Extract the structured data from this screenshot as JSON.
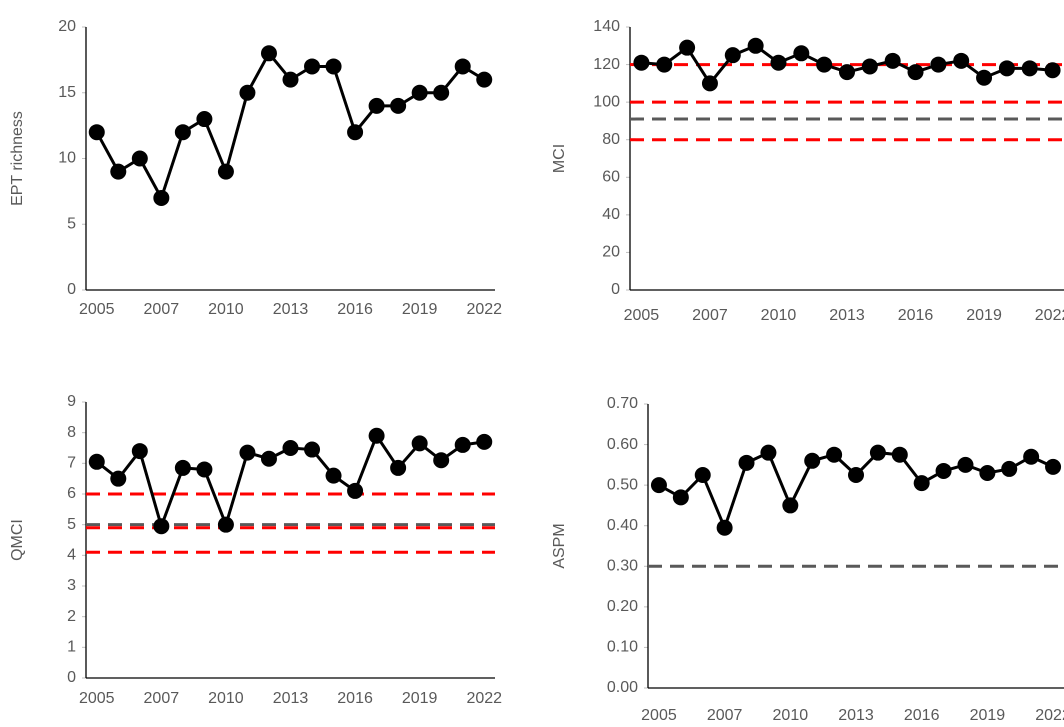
{
  "chart_data": [
    {
      "type": "line",
      "y_label": "EPT richness",
      "categories": [
        "2005",
        null,
        null,
        "2007",
        null,
        null,
        "2010",
        null,
        null,
        "2013",
        null,
        null,
        "2016",
        null,
        null,
        "2019",
        null,
        null,
        "2022"
      ],
      "series": [
        {
          "color": "#000000",
          "values": [
            12,
            9,
            10,
            7,
            12,
            13,
            9,
            15,
            18,
            16,
            17,
            17,
            12,
            14,
            14,
            15,
            15,
            17,
            16
          ]
        }
      ],
      "ylim": [
        0,
        20
      ],
      "yticks": [
        0,
        5,
        10,
        15,
        20
      ],
      "reference_lines": []
    },
    {
      "type": "line",
      "y_label": "MCI",
      "categories": [
        "2005",
        null,
        null,
        "2007",
        null,
        null,
        "2010",
        null,
        null,
        "2013",
        null,
        null,
        "2016",
        null,
        null,
        "2019",
        null,
        null,
        "2022"
      ],
      "series": [
        {
          "color": "#000000",
          "values": [
            121,
            120,
            129,
            110,
            125,
            130,
            121,
            126,
            120,
            116,
            119,
            122,
            116,
            120,
            122,
            113,
            118,
            118,
            117
          ]
        }
      ],
      "ylim": [
        0,
        140
      ],
      "yticks": [
        0,
        20,
        40,
        60,
        80,
        100,
        120,
        140
      ],
      "reference_lines": [
        {
          "value": 120,
          "color": "#ff0000"
        },
        {
          "value": 100,
          "color": "#ff0000"
        },
        {
          "value": 91,
          "color": "#595959"
        },
        {
          "value": 80,
          "color": "#ff0000"
        }
      ]
    },
    {
      "type": "line",
      "y_label": "QMCI",
      "categories": [
        "2005",
        null,
        null,
        "2007",
        null,
        null,
        "2010",
        null,
        null,
        "2013",
        null,
        null,
        "2016",
        null,
        null,
        "2019",
        null,
        null,
        "2022"
      ],
      "series": [
        {
          "color": "#000000",
          "values": [
            7.05,
            6.5,
            7.4,
            4.95,
            6.85,
            6.8,
            5.0,
            7.35,
            7.15,
            7.5,
            7.45,
            6.6,
            6.1,
            7.9,
            6.85,
            7.65,
            7.1,
            7.6,
            7.7
          ]
        }
      ],
      "ylim": [
        0,
        9
      ],
      "yticks": [
        0,
        1,
        2,
        3,
        4,
        5,
        6,
        7,
        8,
        9
      ],
      "reference_lines": [
        {
          "value": 6,
          "color": "#ff0000"
        },
        {
          "value": 5,
          "color": "#595959"
        },
        {
          "value": 4.9,
          "color": "#ff0000"
        },
        {
          "value": 4.1,
          "color": "#ff0000"
        }
      ]
    },
    {
      "type": "line",
      "y_label": "ASPM",
      "categories": [
        "2005",
        null,
        null,
        "2007",
        null,
        null,
        "2010",
        null,
        null,
        "2013",
        null,
        null,
        "2016",
        null,
        null,
        "2019",
        null,
        null,
        "2022"
      ],
      "series": [
        {
          "color": "#000000",
          "values": [
            0.5,
            0.47,
            0.525,
            0.395,
            0.555,
            0.58,
            0.45,
            0.56,
            0.575,
            0.525,
            0.58,
            0.575,
            0.505,
            0.535,
            0.55,
            0.53,
            0.54,
            0.57,
            0.545
          ]
        }
      ],
      "ylim": [
        0,
        0.7
      ],
      "yticks": [
        {
          "value": 0,
          "label": "0.00"
        },
        {
          "value": 0.1,
          "label": "0.10"
        },
        {
          "value": 0.2,
          "label": "0.20"
        },
        {
          "value": 0.3,
          "label": "0.30"
        },
        {
          "value": 0.4,
          "label": "0.40"
        },
        {
          "value": 0.5,
          "label": "0.50"
        },
        {
          "value": 0.6,
          "label": "0.60"
        },
        {
          "value": 0.7,
          "label": "0.70"
        }
      ],
      "reference_lines": [
        {
          "value": 0.3,
          "color": "#595959"
        }
      ]
    }
  ]
}
